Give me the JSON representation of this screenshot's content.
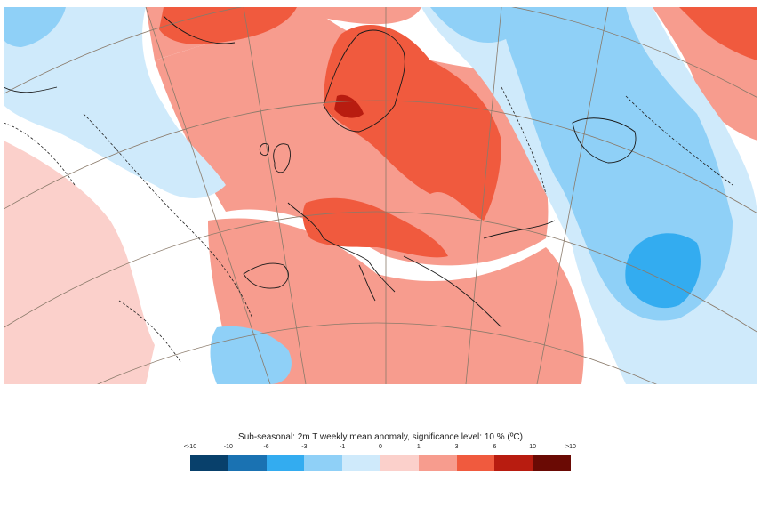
{
  "legend": {
    "title": "Sub-seasonal: 2m T weekly mean anomaly, significance level: 10 % (ºC)",
    "ticks": [
      "<-10",
      "-10",
      "-6",
      "-3",
      "-1",
      "0",
      "1",
      "3",
      "6",
      "10",
      ">10"
    ],
    "colors": [
      "#08406b",
      "#1a72b2",
      "#33acf0",
      "#8fd0f7",
      "#cfeafb",
      "#fbd0cb",
      "#f79c8e",
      "#f05a3e",
      "#b81c10",
      "#6a0a04"
    ]
  },
  "map": {
    "colors": {
      "land_line": "#1a1a1a",
      "grid_line": "#8a7a6a",
      "background": "#ffffff"
    }
  }
}
